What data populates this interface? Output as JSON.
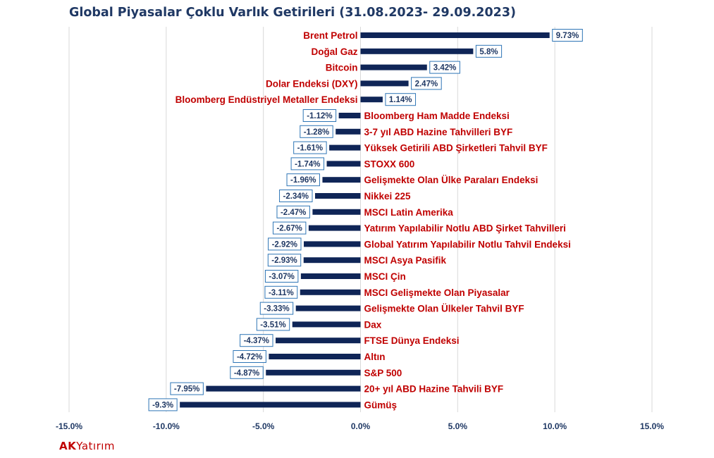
{
  "chart_data": {
    "type": "bar",
    "orientation": "horizontal",
    "title": "Global Piyasalar Çoklu Varlık Getirileri (31.08.2023- 29.09.2023)",
    "xlabel": "",
    "ylabel": "",
    "xlim": [
      -15,
      15
    ],
    "x_ticks": [
      "-15.0%",
      "-10.0%",
      "-5.0%",
      "0.0%",
      "5.0%",
      "10.0%",
      "15.0%"
    ],
    "grid": "vertical",
    "legend": "none",
    "bar_color": "#0f2557",
    "category_label_color": "#c00000",
    "data_label_border_color": "#2e75b6",
    "categories": [
      "Brent Petrol",
      "Doğal Gaz",
      "Bitcoin",
      "Dolar Endeksi (DXY)",
      "Bloomberg Endüstriyel Metaller Endeksi",
      "Bloomberg Ham Madde Endeksi",
      "3-7 yıl ABD Hazine Tahvilleri BYF",
      "Yüksek Getirili ABD Şirketleri Tahvil BYF",
      "STOXX 600",
      "Gelişmekte Olan Ülke Paraları Endeksi",
      "Nikkei 225",
      "MSCI Latin Amerika",
      "Yatırım Yapılabilir Notlu  ABD Şirket Tahvilleri",
      "Global Yatırım Yapılabilir Notlu Tahvil Endeksi",
      "MSCI Asya Pasifik",
      "MSCI Çin",
      "MSCI Gelişmekte Olan Piyasalar",
      "Gelişmekte Olan Ülkeler Tahvil BYF",
      "Dax",
      "FTSE Dünya Endeksi",
      "Altın",
      "S&P 500",
      "20+ yıl ABD Hazine Tahvili BYF",
      "Gümüş"
    ],
    "values": [
      9.73,
      5.8,
      3.42,
      2.47,
      1.14,
      -1.12,
      -1.28,
      -1.61,
      -1.74,
      -1.96,
      -2.34,
      -2.47,
      -2.67,
      -2.92,
      -2.93,
      -3.07,
      -3.11,
      -3.33,
      -3.51,
      -4.37,
      -4.72,
      -4.87,
      -7.95,
      -9.3
    ],
    "data_labels": [
      "9.73%",
      "5.8%",
      "3.42%",
      "2.47%",
      "1.14%",
      "-1.12%",
      "-1.28%",
      "-1.61%",
      "-1.74%",
      "-1.96%",
      "-2.34%",
      "-2.47%",
      "-2.67%",
      "-2.92%",
      "-2.93%",
      "-3.07%",
      "-3.11%",
      "-3.33%",
      "-3.51%",
      "-4.37%",
      "-4.72%",
      "-4.87%",
      "-7.95%",
      "-9.3%"
    ]
  },
  "logo": {
    "part1": "AK",
    "part2": "Yatırım"
  }
}
